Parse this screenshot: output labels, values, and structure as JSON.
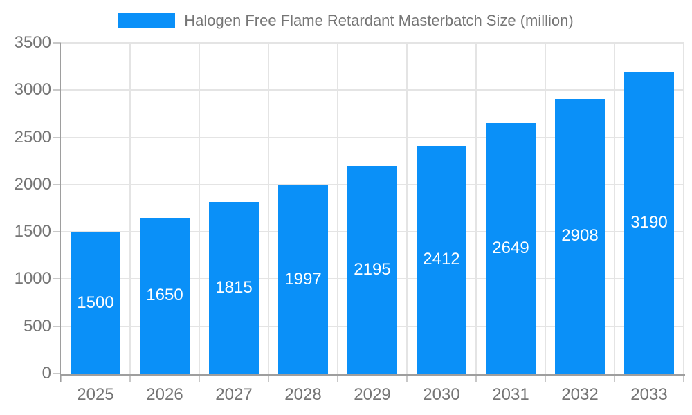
{
  "legend": {
    "items": [
      {
        "label": "Halogen Free Flame Retardant Masterbatch Size (million)",
        "color": "#0A90F8"
      }
    ]
  },
  "chart_data": {
    "type": "bar",
    "title": "Halogen Free Flame Retardant Masterbatch Size (million)",
    "categories": [
      "2025",
      "2026",
      "2027",
      "2028",
      "2029",
      "2030",
      "2031",
      "2032",
      "2033"
    ],
    "series": [
      {
        "name": "Halogen Free Flame Retardant Masterbatch Size (million)",
        "values": [
          1500,
          1650,
          1815,
          1997,
          2195,
          2412,
          2649,
          2908,
          3190
        ],
        "color": "#0A90F8"
      }
    ],
    "xlabel": "",
    "ylabel": "",
    "ylim": [
      0,
      3500
    ],
    "yticks": [
      0,
      500,
      1000,
      1500,
      2000,
      2500,
      3000,
      3500
    ],
    "grid": true,
    "legend_position": "top",
    "value_labels": {
      "show": true,
      "position": "inside-center",
      "color": "#FFFFFF"
    }
  },
  "colors": {
    "bar": "#0A90F8",
    "axis_text": "#757575",
    "grid_line": "#E4E4E4",
    "axis_line": "#9E9E9E",
    "tick": "#C8C8C8",
    "background": "#FFFFFF",
    "value_label": "#FFFFFF"
  }
}
